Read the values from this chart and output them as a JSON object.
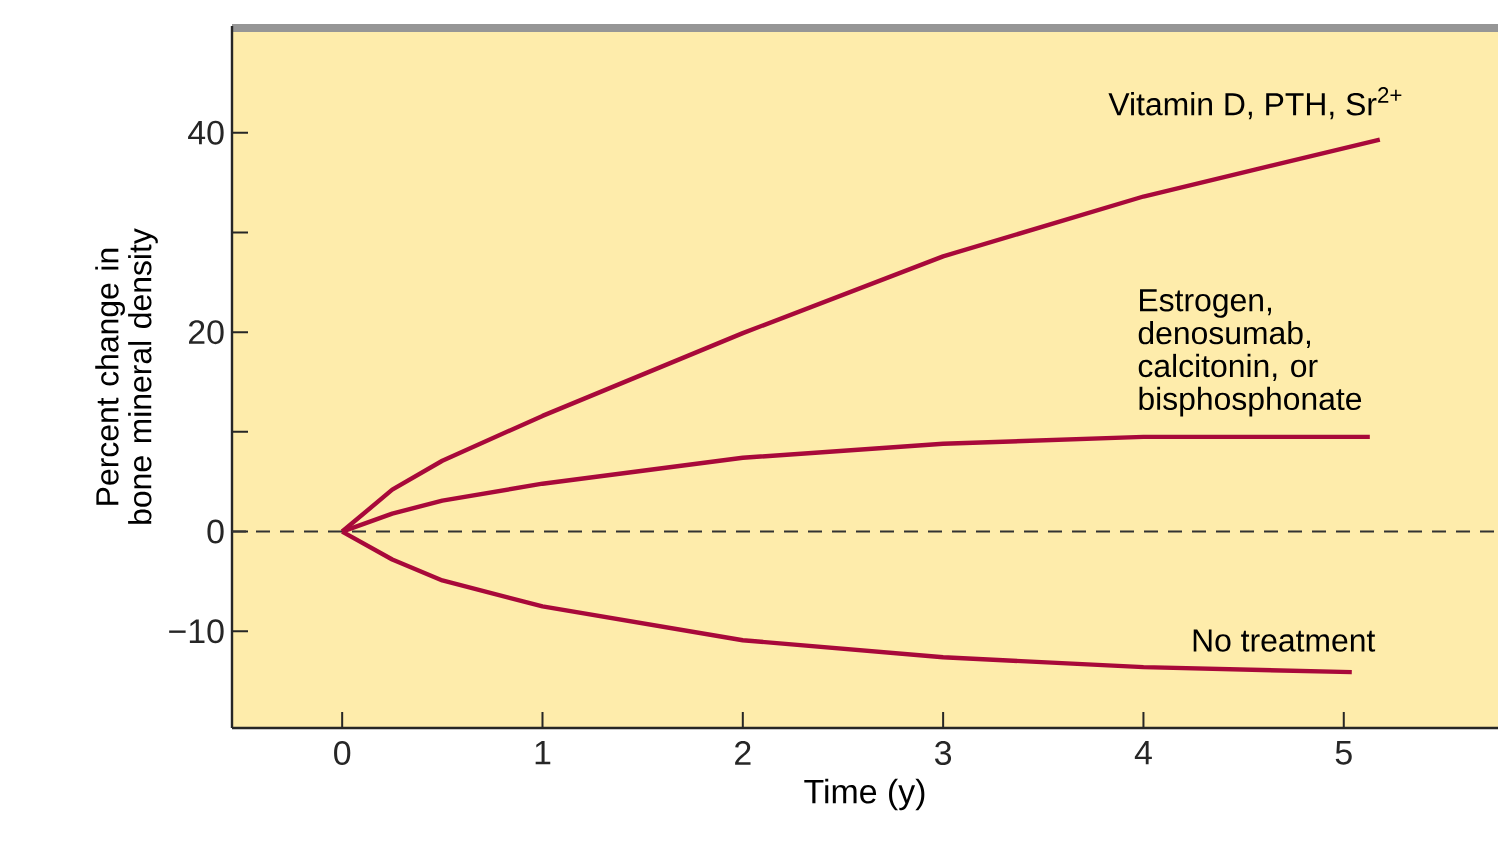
{
  "chart_data": {
    "type": "line",
    "xlabel": "Time (y)",
    "ylabel": "Percent change in bone mineral density",
    "xlim": [
      -0.55,
      5.77
    ],
    "ylim": [
      -19.7,
      50.7
    ],
    "xticks": [
      0,
      1,
      2,
      3,
      4,
      5
    ],
    "yticks": [
      {
        "value": -10,
        "label": "−10"
      },
      0,
      {
        "value": 10,
        "label": null
      },
      20,
      {
        "value": 30,
        "label": null
      },
      40
    ],
    "grid": false,
    "marker": "none",
    "line_style": "solid",
    "series": [
      {
        "color": "#a8093a",
        "x": [
          0,
          0.25,
          0.5,
          1,
          2,
          3,
          4,
          5.18
        ],
        "values": [
          0,
          4.2,
          7.1,
          11.6,
          19.9,
          27.6,
          33.6,
          39.3
        ]
      },
      {
        "color": "#a8093a",
        "x": [
          0,
          0.25,
          0.5,
          1,
          2,
          3,
          4,
          5.13
        ],
        "values": [
          0,
          1.8,
          3.1,
          4.8,
          7.4,
          8.8,
          9.5,
          9.5
        ]
      },
      {
        "color": "#a8093a",
        "x": [
          0,
          0.25,
          0.5,
          1,
          2,
          3,
          4,
          5.04
        ],
        "values": [
          0,
          -2.8,
          -4.9,
          -7.5,
          -10.9,
          -12.6,
          -13.6,
          -14.1
        ]
      }
    ],
    "ref_lines": [
      {
        "axis": "y",
        "value": 0,
        "label": null,
        "color": "#333333",
        "line_style": "dashed"
      }
    ],
    "annotations": [
      "Vitamin D, PTH, Sr$^{2+}$",
      "Estrogen, denosumab, calcitonin, or bisphosphonate",
      "No treatment"
    ]
  }
}
